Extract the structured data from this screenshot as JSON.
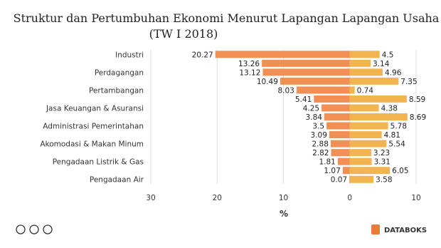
{
  "chart_data": {
    "type": "diverging-bar",
    "title": "Struktur dan Pertumbuhan Ekonomi Menurut Lapangan Lapangan Usaha",
    "subtitle": "(TW I 2018)",
    "x_label": "%",
    "categories": [
      "Industri",
      null,
      "Perdagangan",
      null,
      "Pertambangan",
      null,
      "Jasa Keuangan & Asuransi",
      null,
      "Administrasi Pemerintahan",
      null,
      "Akomodasi & Makan Minum",
      null,
      "Pengadaan Listrik & Gas",
      null,
      "Pengadaan Air"
    ],
    "series": [
      {
        "color": "#f28f54",
        "values": [
          -20.27,
          -13.26,
          -13.12,
          -10.49,
          -8.03,
          -5.41,
          -4.25,
          -3.84,
          -3.5,
          -3.09,
          -2.88,
          -2.82,
          -1.81,
          -1.07,
          -0.07
        ],
        "value_labels": [
          "20.27",
          "13.26",
          "13.12",
          "10.49",
          "8.03",
          "5.41",
          "4.25",
          "3.84",
          "3.5",
          "3.09",
          "2.88",
          "2.82",
          "1.81",
          "1.07",
          "0.07"
        ]
      },
      {
        "color": "#f1b44e",
        "values": [
          4.5,
          3.14,
          4.96,
          7.35,
          0.74,
          8.59,
          4.38,
          8.69,
          5.78,
          4.81,
          5.54,
          3.23,
          3.31,
          6.05,
          3.58
        ]
      }
    ],
    "xlim": [
      -30,
      10
    ],
    "xticks": [
      {
        "value": -30,
        "label": "30"
      },
      {
        "value": -20,
        "label": "20"
      },
      {
        "value": -10,
        "label": "10"
      },
      0,
      10
    ],
    "grid": true,
    "brand": "DATABOKS"
  }
}
